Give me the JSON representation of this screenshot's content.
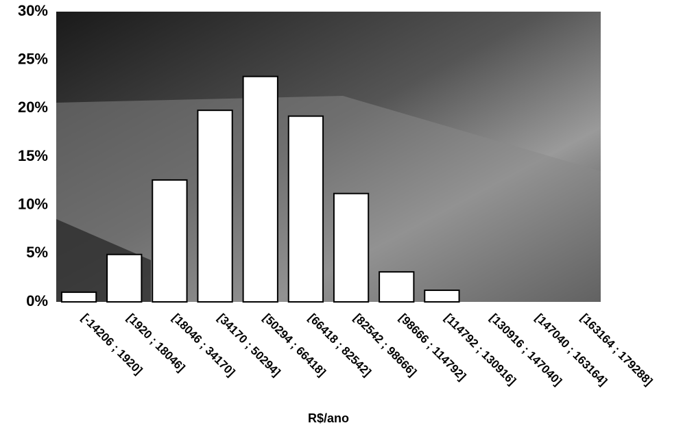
{
  "chart_data": {
    "type": "bar",
    "x_label": "R$/ano",
    "categories": [
      "[-14206 ; 1920]",
      "[1920 ; 18046]",
      "[18046 ; 34170]",
      "[34170 ; 50294]",
      "[50294 ; 66418]",
      "[66418 ; 82542]",
      "[82542 ; 98666]",
      "[98666 ; 114792]",
      "[114792 ; 130916]",
      "[130916 ; 147040]",
      "[147040 ; 163164]",
      "[163164 ; 179288]"
    ],
    "values": [
      1.0,
      4.9,
      12.6,
      19.8,
      23.3,
      19.2,
      11.2,
      3.1,
      1.2,
      0,
      0,
      0
    ],
    "color": "#ffffff",
    "ylim": [
      0,
      30
    ],
    "yticks": [
      {
        "value": 0,
        "label": "0%"
      },
      {
        "value": 5,
        "label": "5%"
      },
      {
        "value": 10,
        "label": "10%"
      },
      {
        "value": 15,
        "label": "15%"
      },
      {
        "value": 20,
        "label": "20%"
      },
      {
        "value": 25,
        "label": "25%"
      },
      {
        "value": 30,
        "label": "30%"
      }
    ]
  }
}
